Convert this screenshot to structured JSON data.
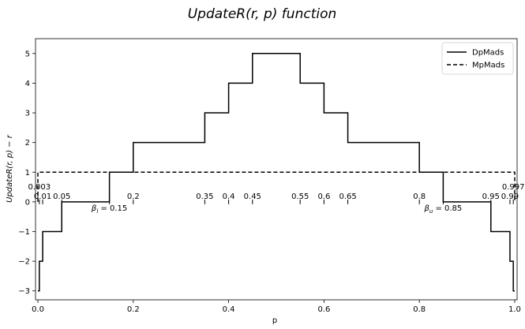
{
  "chart_data": {
    "type": "line",
    "title": "UpdateR(r, p) function",
    "xlabel": "p",
    "ylabel": "UpdateR(r, p) − r",
    "xlim": [
      -0.005,
      1.005
    ],
    "ylim": [
      -3.3,
      5.5
    ],
    "x_ticks": [
      "0.0",
      "0.2",
      "0.4",
      "0.6",
      "0.8",
      "1.0"
    ],
    "x_tick_values": [
      0.0,
      0.2,
      0.4,
      0.6,
      0.8,
      1.0
    ],
    "y_ticks": [
      "−3",
      "−2",
      "−1",
      "0",
      "1",
      "2",
      "3",
      "4",
      "5"
    ],
    "y_tick_values": [
      -3,
      -2,
      -1,
      0,
      1,
      2,
      3,
      4,
      5
    ],
    "grid": false,
    "legend_position": "top-right",
    "series": [
      {
        "name": "DpMads",
        "style": "solid",
        "color": "#000000",
        "x": [
          0.0,
          0.003,
          0.003,
          0.01,
          0.01,
          0.05,
          0.05,
          0.15,
          0.15,
          0.2,
          0.2,
          0.35,
          0.35,
          0.4,
          0.4,
          0.45,
          0.45,
          0.55,
          0.55,
          0.6,
          0.6,
          0.65,
          0.65,
          0.8,
          0.8,
          0.85,
          0.85,
          0.95,
          0.95,
          0.99,
          0.99,
          0.997,
          0.997,
          1.0
        ],
        "y": [
          -3,
          -3,
          -2,
          -2,
          -1,
          -1,
          0,
          0,
          1,
          1,
          2,
          2,
          3,
          3,
          4,
          4,
          5,
          5,
          4,
          4,
          3,
          3,
          2,
          2,
          1,
          1,
          0,
          0,
          -1,
          -1,
          -2,
          -2,
          -3,
          -3
        ]
      },
      {
        "name": "MpMads",
        "style": "dashed",
        "color": "#000000",
        "x": [
          0.0,
          0.0,
          1.0,
          1.0
        ],
        "y": [
          0,
          1,
          1,
          0
        ]
      }
    ],
    "markers": [
      {
        "x": 0.003,
        "label": "0.003",
        "row": "high",
        "align": "middle"
      },
      {
        "x": 0.01,
        "label": "0.01",
        "row": "low",
        "align": "middle"
      },
      {
        "x": 0.05,
        "label": "0.05",
        "row": "low",
        "align": "middle"
      },
      {
        "x": 0.2,
        "label": "0.2",
        "row": "low",
        "align": "middle"
      },
      {
        "x": 0.35,
        "label": "0.35",
        "row": "low",
        "align": "middle"
      },
      {
        "x": 0.4,
        "label": "0.4",
        "row": "low",
        "align": "middle"
      },
      {
        "x": 0.45,
        "label": "0.45",
        "row": "low",
        "align": "middle"
      },
      {
        "x": 0.55,
        "label": "0.55",
        "row": "low",
        "align": "middle"
      },
      {
        "x": 0.6,
        "label": "0.6",
        "row": "low",
        "align": "middle"
      },
      {
        "x": 0.65,
        "label": "0.65",
        "row": "low",
        "align": "middle"
      },
      {
        "x": 0.8,
        "label": "0.8",
        "row": "low",
        "align": "middle"
      },
      {
        "x": 0.95,
        "label": "0.95",
        "row": "low",
        "align": "middle"
      },
      {
        "x": 0.99,
        "label": "0.99",
        "row": "low",
        "align": "middle"
      },
      {
        "x": 0.997,
        "label": "0.997",
        "row": "high",
        "align": "middle"
      },
      {
        "x": 0.15,
        "label": "",
        "row": "none",
        "align": "middle"
      },
      {
        "x": 0.85,
        "label": "",
        "row": "none",
        "align": "middle"
      }
    ],
    "annotations": [
      {
        "x": 0.15,
        "sym": "β",
        "sub": "l",
        "rest": " = 0.15"
      },
      {
        "x": 0.85,
        "sym": "β",
        "sub": "u",
        "rest": " = 0.85"
      }
    ]
  }
}
